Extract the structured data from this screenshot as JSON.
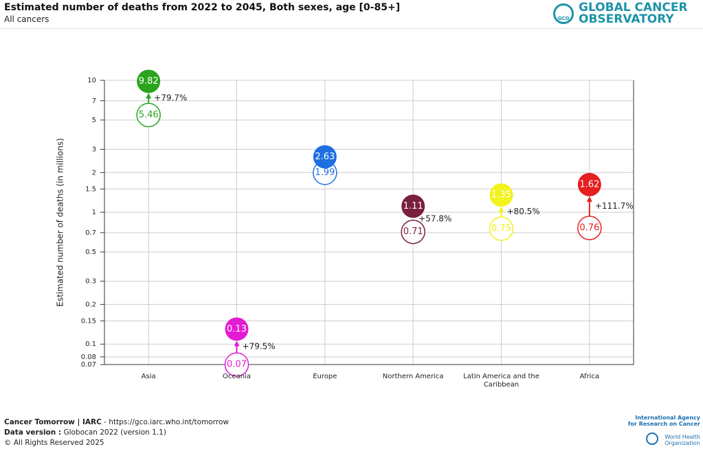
{
  "header": {
    "title": "Estimated number of deaths from 2022 to 2045, Both sexes, age [0-85+]",
    "subtitle": "All cancers",
    "logo_line1": "GLOBAL CANCER",
    "logo_line2": "OBSERVATORY",
    "logo_icon": "GCO"
  },
  "chart_data": {
    "type": "dot-change",
    "y_label": "Estimated number of deaths (in millions)",
    "categories": [
      "Asia",
      "Oceania",
      "Europe",
      "Northern America",
      "Latin America and the Caribbean",
      "Africa"
    ],
    "colors": [
      "#2aa31e",
      "#e41bd2",
      "#1e6fe0",
      "#7a1f3e",
      "#f2f21c",
      "#e61f1f"
    ],
    "series": [
      {
        "values": [
          5.46,
          0.07,
          1.99,
          0.71,
          0.75,
          0.76
        ]
      },
      {
        "values": [
          9.82,
          0.13,
          2.63,
          1.11,
          1.35,
          1.62
        ]
      }
    ],
    "change_labels": [
      "+79.7%",
      "+79.5%",
      null,
      "+57.8%",
      "+80.5%",
      "+111.7%"
    ],
    "ylim": [
      0.07,
      10
    ],
    "log_scale": true,
    "grid": true,
    "yticks": [
      0.07,
      0.08,
      0.1,
      0.15,
      0.2,
      0.3,
      0.5,
      0.7,
      1,
      1.5,
      2,
      3,
      5,
      7,
      10
    ]
  },
  "footer": {
    "source_bold": "Cancer Tomorrow | IARC",
    "source_rest": " - https://gco.iarc.who.int/tomorrow",
    "version_bold": "Data version :",
    "version_rest": " Globocan 2022 (version 1.1)",
    "rights": "© All Rights Reserved 2025",
    "iarc_line1": "International Agency",
    "iarc_line2": "for Research on Cancer",
    "who_line1": "World Health",
    "who_line2": "Organization"
  }
}
